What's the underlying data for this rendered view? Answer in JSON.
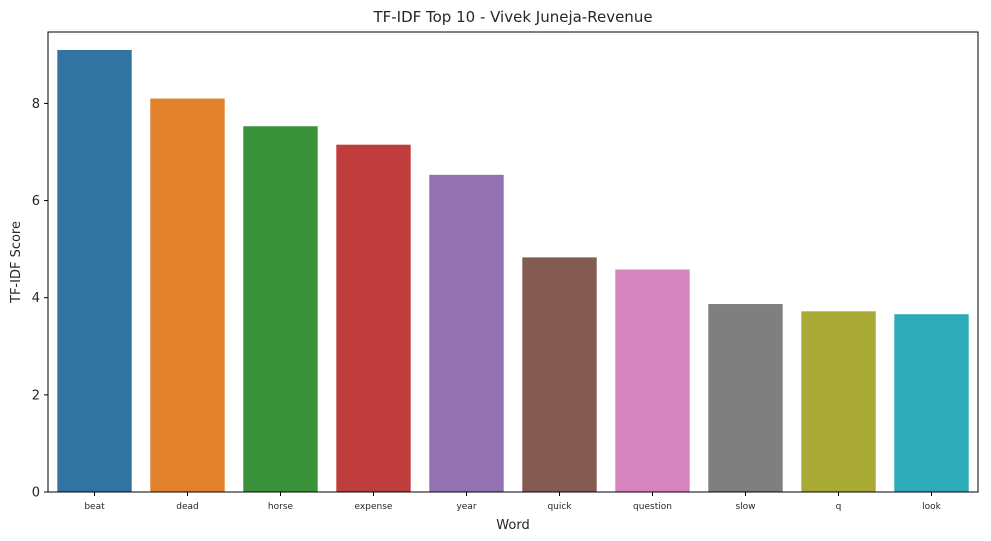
{
  "chart_data": {
    "type": "bar",
    "title": "TF-IDF Top 10 - Vivek Juneja-Revenue",
    "xlabel": "Word",
    "ylabel": "TF-IDF Score",
    "categories": [
      "beat",
      "dead",
      "horse",
      "expense",
      "year",
      "quick",
      "question",
      "slow",
      "q",
      "look"
    ],
    "values": [
      9.1,
      8.1,
      7.53,
      7.15,
      6.53,
      4.83,
      4.58,
      3.87,
      3.72,
      3.66
    ],
    "colors": [
      "#3274a1",
      "#e1812c",
      "#3a923a",
      "#c03d3e",
      "#9372b2",
      "#845b53",
      "#d684bd",
      "#7f7f7f",
      "#a9aa35",
      "#2eabb8"
    ],
    "ylim": [
      0,
      9.47
    ],
    "yticks": [
      0,
      2,
      4,
      6,
      8
    ],
    "grid": false,
    "legend": "none"
  }
}
